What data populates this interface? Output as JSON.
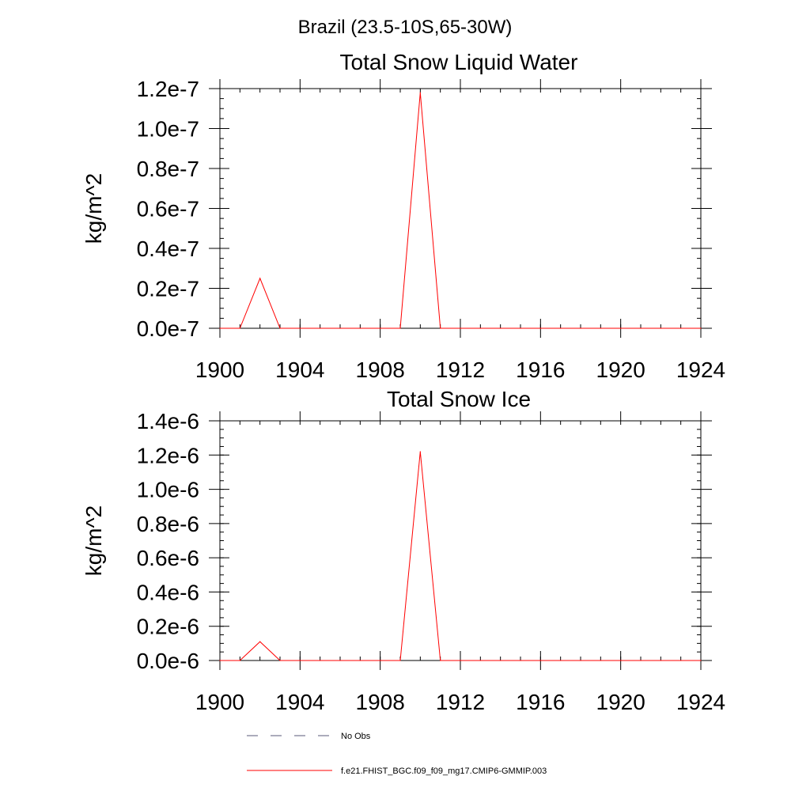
{
  "page_title": "Brazil (23.5-10S,65-30W)",
  "chart_data": [
    {
      "type": "line",
      "title": "Total Snow Liquid Water",
      "xlabel": "",
      "ylabel": "kg/m^2",
      "xlim": [
        1900,
        1924
      ],
      "ylim": [
        0.0,
        1.2
      ],
      "x_ticks": [
        1900,
        1904,
        1908,
        1912,
        1916,
        1920,
        1924
      ],
      "y_ticks": [
        0.0,
        0.2,
        0.4,
        0.6,
        0.8,
        1.0,
        1.2
      ],
      "y_tick_labels": [
        "0.0e-7",
        "0.2e-7",
        "0.4e-7",
        "0.6e-7",
        "0.8e-7",
        "1.0e-7",
        "1.2e-7"
      ],
      "y_scale_note": "values in units of 1e-7 kg/m^2",
      "series": [
        {
          "name": "f.e21.FHIST_BGC.f09_f09_mg17.CMIP6-GMMIP.003",
          "color": "#ff0000",
          "x": [
            1900,
            1901,
            1902,
            1903,
            1904,
            1905,
            1906,
            1907,
            1908,
            1909,
            1910,
            1911,
            1912,
            1913,
            1914,
            1915,
            1916,
            1917,
            1918,
            1919,
            1920,
            1921,
            1922,
            1923,
            1924
          ],
          "values": [
            0,
            0,
            0.25,
            0,
            0,
            0,
            0,
            0,
            0,
            0,
            1.18,
            0,
            0,
            0,
            0,
            0,
            0,
            0,
            0,
            0,
            0,
            0,
            0,
            0,
            0
          ]
        }
      ]
    },
    {
      "type": "line",
      "title": "Total Snow Ice",
      "xlabel": "",
      "ylabel": "kg/m^2",
      "xlim": [
        1900,
        1924
      ],
      "ylim": [
        0.0,
        1.4
      ],
      "x_ticks": [
        1900,
        1904,
        1908,
        1912,
        1916,
        1920,
        1924
      ],
      "y_ticks": [
        0.0,
        0.2,
        0.4,
        0.6,
        0.8,
        1.0,
        1.2,
        1.4
      ],
      "y_tick_labels": [
        "0.0e-6",
        "0.2e-6",
        "0.4e-6",
        "0.6e-6",
        "0.8e-6",
        "1.0e-6",
        "1.2e-6",
        "1.4e-6"
      ],
      "y_scale_note": "values in units of 1e-6 kg/m^2",
      "series": [
        {
          "name": "f.e21.FHIST_BGC.f09_f09_mg17.CMIP6-GMMIP.003",
          "color": "#ff0000",
          "x": [
            1900,
            1901,
            1902,
            1903,
            1904,
            1905,
            1906,
            1907,
            1908,
            1909,
            1910,
            1911,
            1912,
            1913,
            1914,
            1915,
            1916,
            1917,
            1918,
            1919,
            1920,
            1921,
            1922,
            1923,
            1924
          ],
          "values": [
            0,
            0,
            0.11,
            0,
            0,
            0,
            0,
            0,
            0,
            0,
            1.22,
            0,
            0,
            0,
            0,
            0,
            0,
            0,
            0,
            0,
            0,
            0,
            0,
            0,
            0
          ]
        }
      ]
    }
  ],
  "legend": {
    "entries": [
      {
        "label": "No Obs",
        "color": "#5a5a7a",
        "style": "dashed"
      },
      {
        "label": "f.e21.FHIST_BGC.f09_f09_mg17.CMIP6-GMMIP.003",
        "color": "#ff0000",
        "style": "solid"
      }
    ]
  }
}
